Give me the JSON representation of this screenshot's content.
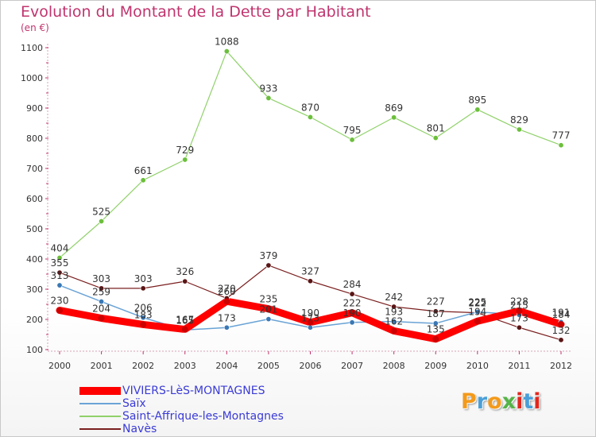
{
  "title": "Evolution du Montant de la Dette par Habitant",
  "subtitle": "(en €)",
  "logo": {
    "text": "Proxiti",
    "colors": [
      "#f39a1b",
      "#4a9fd8",
      "#f39a1b",
      "#55b447",
      "#e2271d",
      "#4a9fd8",
      "#e2271d"
    ]
  },
  "chart_data": {
    "type": "line",
    "title": "Evolution du Montant de la Dette par Habitant",
    "ylabel": "(en €)",
    "x": [
      "2000",
      "2001",
      "2002",
      "2003",
      "2004",
      "2005",
      "2006",
      "2007",
      "2008",
      "2009",
      "2010",
      "2011",
      "2012"
    ],
    "yticks": [
      100,
      200,
      300,
      400,
      500,
      600,
      700,
      800,
      900,
      1000,
      1100
    ],
    "ylim": [
      100,
      1100
    ],
    "grid": false,
    "legend": "bottom-left",
    "series": [
      {
        "name": "VIVIERS-LèS-MONTAGNES",
        "color": "#ff0000",
        "values": [
          230,
          204,
          183,
          167,
          260,
          235,
          190,
          222,
          162,
          135,
          194,
          228,
          184
        ]
      },
      {
        "name": "Saïx",
        "color": "#6aa3d6",
        "values": [
          313,
          259,
          206,
          165,
          173,
          201,
          173,
          190,
          193,
          187,
          225,
          215,
          191
        ]
      },
      {
        "name": "Saint-Affrique-les-Montagnes",
        "color": "#90d16a",
        "values": [
          404,
          525,
          661,
          729,
          1088,
          933,
          870,
          795,
          869,
          801,
          895,
          829,
          777
        ]
      },
      {
        "name": "Navès",
        "color": "#7b1f1f",
        "values": [
          355,
          303,
          303,
          326,
          270,
          379,
          327,
          284,
          242,
          227,
          222,
          173,
          132
        ]
      }
    ],
    "point_labels": [
      [
        "230",
        "204",
        "183",
        "167",
        "260",
        "235",
        "190",
        "222",
        "162",
        "135",
        "194",
        "228",
        "184"
      ],
      [
        "313",
        "259",
        "206",
        "165",
        "173",
        "201",
        "173",
        "190",
        "193",
        "187",
        "225",
        "215",
        "191"
      ],
      [
        "404",
        "525",
        "661",
        "729",
        "1088",
        "933",
        "870",
        "795",
        "869",
        "801",
        "895",
        "829",
        "777"
      ],
      [
        "355",
        "303",
        "303",
        "326",
        "270",
        "379",
        "327",
        "284",
        "242",
        "227",
        "222",
        "173",
        "132"
      ]
    ]
  }
}
